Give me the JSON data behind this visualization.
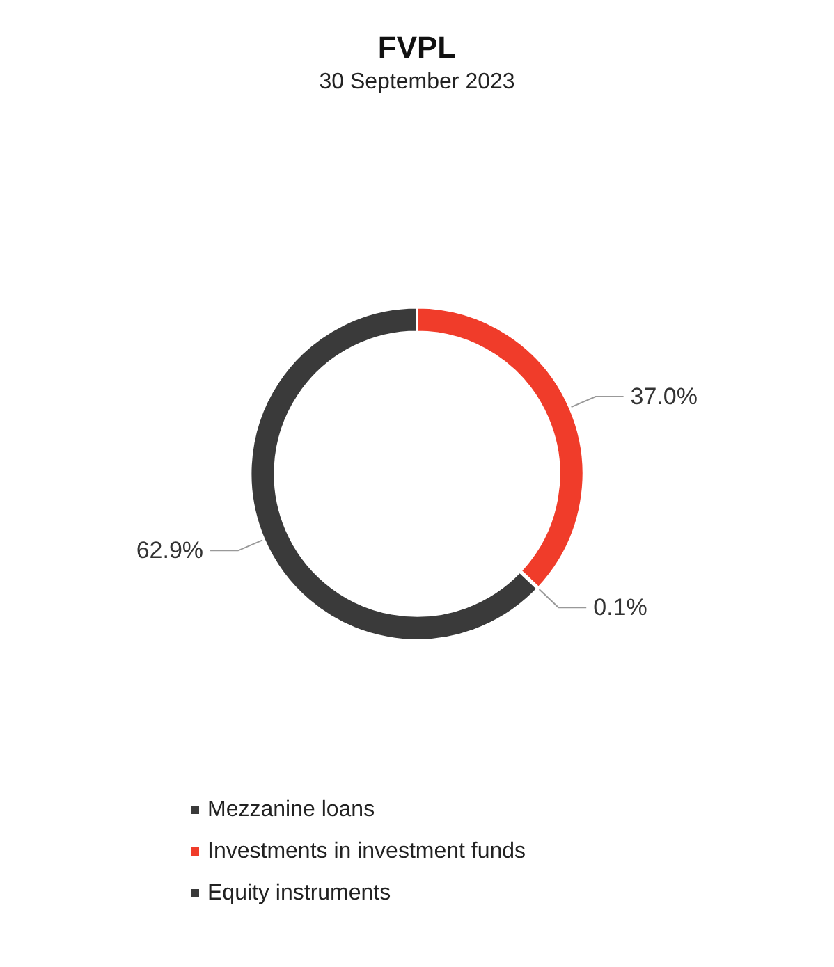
{
  "chart_data": {
    "type": "donut",
    "title": "FVPL",
    "subtitle": "30 September 2023",
    "categories": [
      "Mezzanine loans",
      "Investments in investment funds",
      "Equity instruments"
    ],
    "values": [
      0.1,
      37.0,
      62.9
    ],
    "value_labels": [
      "0.1%",
      "37.0%",
      "62.9%"
    ],
    "colors": [
      "#3a3a3a",
      "#f03c2a",
      "#3a3a3a"
    ],
    "legend": "bottom left"
  }
}
